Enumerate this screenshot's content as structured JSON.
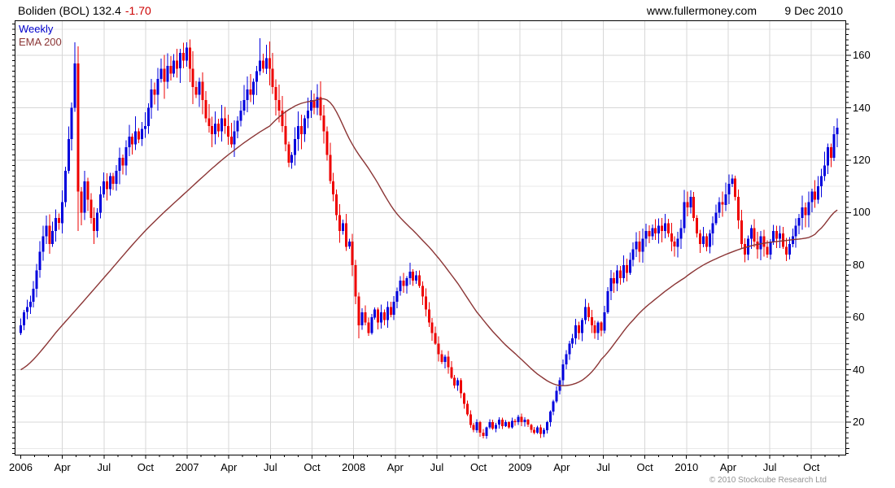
{
  "header": {
    "instrument": "Boliden (BOL) 132.4",
    "change": "-1.70",
    "website": "www.fullermoney.com",
    "date": "9 Dec 2010"
  },
  "legend": {
    "timeframe": "Weekly",
    "overlay": "EMA 200"
  },
  "footer": {
    "copyright": "© 2010 Stockcube Research Ltd"
  },
  "colors": {
    "up_candle": "#0000dd",
    "down_candle": "#ee0000",
    "ema_line": "#8b3535",
    "legend_timeframe": "#0000cc",
    "legend_overlay": "#8b3535",
    "change_text": "#cc0000",
    "grid_major": "#d7d7d7",
    "grid_minor": "#e9e9e9",
    "axis": "#000000",
    "copyright_text": "#939393"
  },
  "chart_data": {
    "type": "candlestick",
    "title": "Boliden (BOL)",
    "frequency": "Weekly",
    "overlay": "EMA 200",
    "last_price": 132.4,
    "change": -1.7,
    "x_axis": {
      "labels": [
        "2006",
        "Apr",
        "Jul",
        "Oct",
        "2007",
        "Apr",
        "Jul",
        "Oct",
        "2008",
        "Apr",
        "Jul",
        "Oct",
        "2009",
        "Apr",
        "Jul",
        "Oct",
        "2010",
        "Apr",
        "Jul",
        "Oct"
      ],
      "weeks_per_quarter": 13.045,
      "minor_tick": "monthly"
    },
    "y_axis": {
      "labels": [
        20,
        40,
        60,
        80,
        100,
        120,
        140,
        160
      ],
      "grid_step": 10,
      "minor_tick_step": 2,
      "range_min": 7.6,
      "range_max": 173.4
    },
    "first_open": 54,
    "weekly_closes": [
      57,
      62,
      64,
      66,
      71,
      78,
      85,
      91,
      95,
      88,
      93,
      98,
      96,
      104,
      116,
      128,
      140,
      157,
      108,
      100,
      112,
      105,
      98,
      93,
      100,
      107,
      112,
      109,
      114,
      111,
      116,
      121,
      118,
      125,
      129,
      126,
      131,
      128,
      132,
      133,
      140,
      147,
      145,
      151,
      155,
      150,
      156,
      153,
      158,
      155,
      161,
      158,
      163,
      155,
      148,
      145,
      150,
      143,
      136,
      133,
      130,
      134,
      131,
      136,
      133,
      129,
      126,
      131,
      135,
      139,
      143,
      147,
      145,
      150,
      154,
      158,
      155,
      159,
      155,
      148,
      143,
      139,
      133,
      126,
      119,
      122,
      128,
      133,
      130,
      136,
      139,
      143,
      140,
      144,
      137,
      131,
      122,
      112,
      107,
      99,
      93,
      96,
      87,
      89,
      80,
      68,
      57,
      62,
      58,
      54,
      60,
      63,
      58,
      62,
      59,
      64,
      61,
      66,
      70,
      74,
      72,
      75,
      77.5,
      74,
      76,
      72,
      68,
      63,
      58,
      54,
      50,
      46,
      43,
      45,
      41,
      37,
      34,
      36,
      31,
      27,
      23,
      19,
      17,
      20,
      16,
      14.8,
      18,
      20,
      17.5,
      19,
      21,
      18.5,
      20,
      18,
      20.5,
      20,
      22,
      20,
      21,
      19,
      17,
      16,
      18,
      15.5,
      17,
      20,
      24,
      28,
      32,
      36,
      42,
      46,
      50,
      52,
      57,
      54,
      59,
      64,
      60,
      57,
      54,
      58,
      55,
      62,
      70,
      75,
      73,
      78,
      75,
      80,
      77,
      82,
      86,
      89,
      85,
      90,
      93,
      91,
      94,
      92,
      95,
      93,
      96,
      92,
      89,
      87,
      90,
      94,
      104,
      102,
      106,
      98,
      92,
      88,
      91,
      87,
      92,
      96,
      100,
      104,
      103,
      107,
      111,
      113,
      106,
      97,
      88,
      84,
      90,
      94,
      89,
      86,
      91,
      87,
      84,
      89,
      93,
      90,
      92,
      87,
      84,
      88,
      91,
      95,
      98,
      102,
      99,
      104,
      108,
      105,
      110,
      114,
      118,
      125,
      121,
      130,
      132.4
    ],
    "wick_overrides": {
      "17": {
        "high": 165
      },
      "18": {
        "low": 93
      },
      "23": {
        "low": 88
      },
      "52": {
        "high": 165
      },
      "75": {
        "high": 166.5
      },
      "106": {
        "low": 52
      },
      "145": {
        "low": 13.8
      },
      "163": {
        "low": 14
      },
      "210": {
        "high": 108.5
      },
      "223": {
        "high": 114.5
      },
      "227": {
        "low": 81
      },
      "256": {
        "high": 136
      }
    },
    "ema200_anchors": [
      [
        0,
        40
      ],
      [
        13,
        57
      ],
      [
        26,
        75
      ],
      [
        39,
        93
      ],
      [
        52,
        108
      ],
      [
        65,
        122
      ],
      [
        78,
        133
      ],
      [
        85,
        140
      ],
      [
        91,
        142.5
      ],
      [
        97,
        142
      ],
      [
        104,
        126
      ],
      [
        110,
        115
      ],
      [
        117,
        101
      ],
      [
        124,
        92
      ],
      [
        130,
        84
      ],
      [
        137,
        73
      ],
      [
        143,
        62
      ],
      [
        150,
        52
      ],
      [
        156,
        45
      ],
      [
        163,
        37.5
      ],
      [
        169,
        34
      ],
      [
        176,
        36
      ],
      [
        182,
        44
      ],
      [
        192,
        59
      ],
      [
        200,
        68
      ],
      [
        208,
        75
      ],
      [
        214,
        80
      ],
      [
        221,
        84
      ],
      [
        228,
        87
      ],
      [
        234,
        88.5
      ],
      [
        241,
        89.5
      ],
      [
        247,
        90.5
      ],
      [
        250,
        93
      ],
      [
        256,
        101
      ]
    ]
  }
}
